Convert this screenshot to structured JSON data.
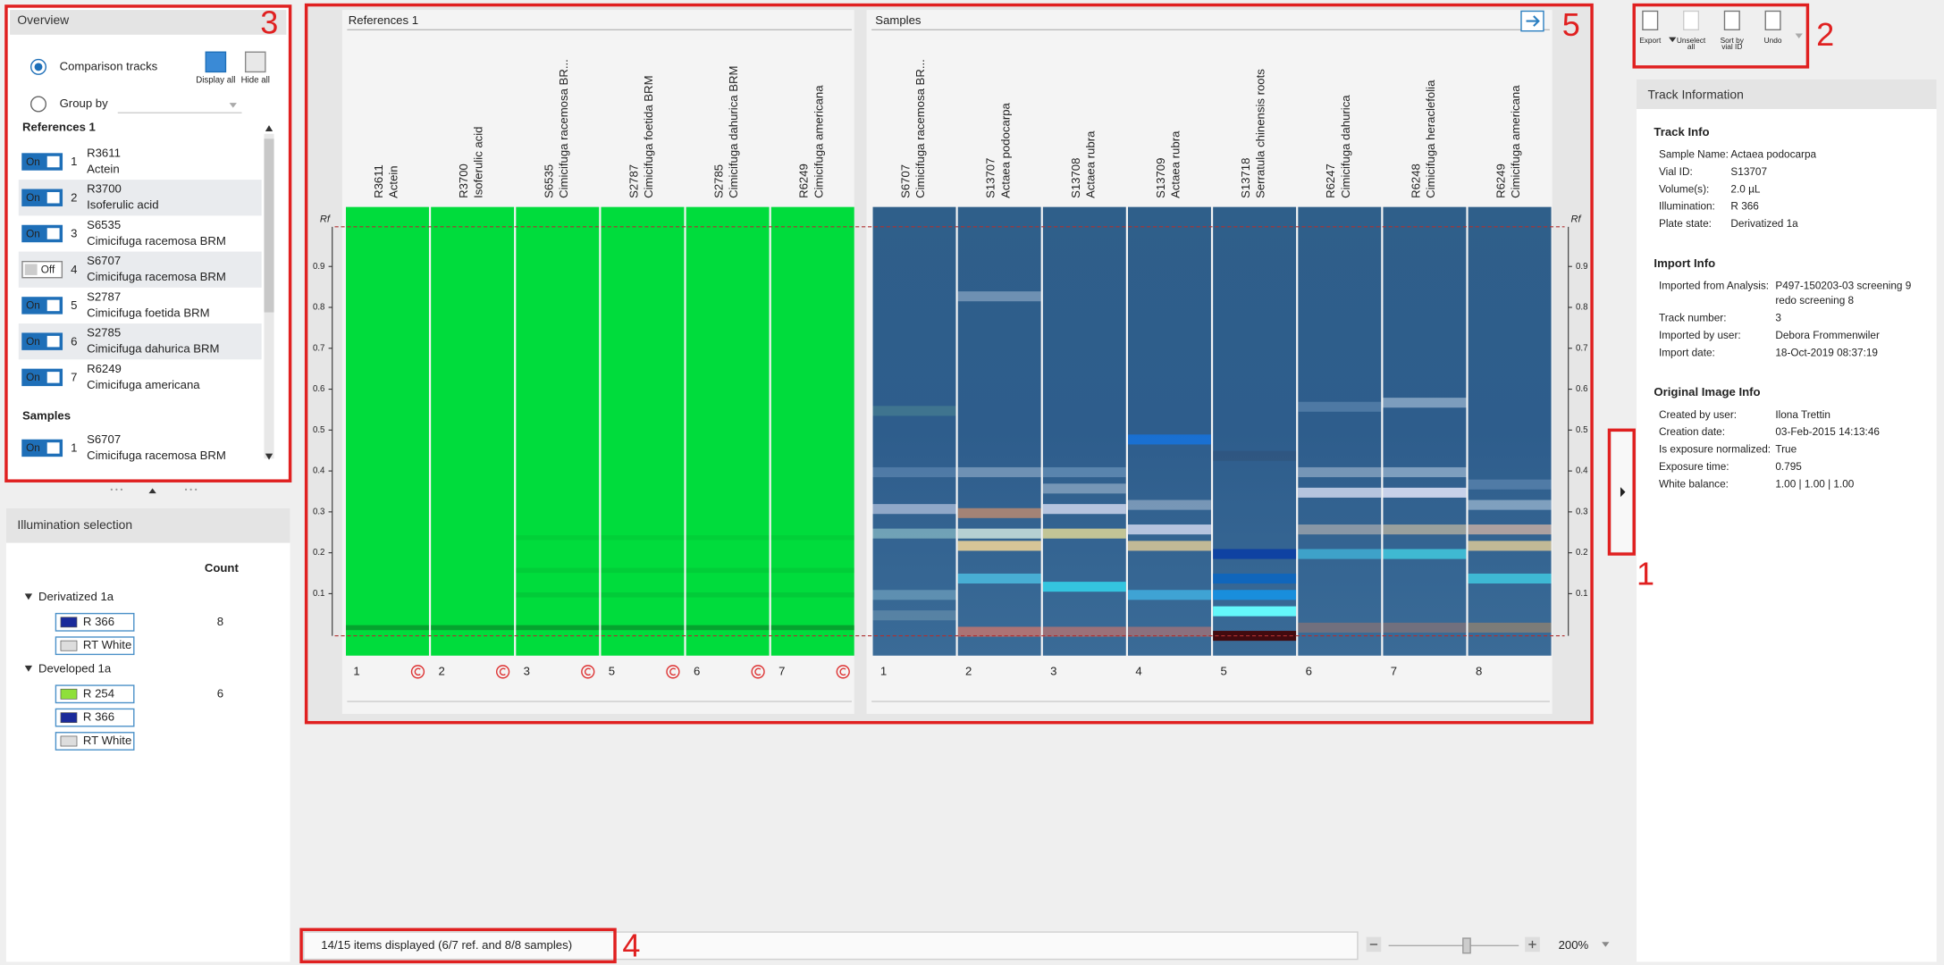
{
  "overview": {
    "title": "Overview",
    "comparison_tracks": "Comparison tracks",
    "display_all": "Display all",
    "hide_all": "Hide all",
    "group_by": "Group by",
    "references_heading": "References 1",
    "references": [
      {
        "toggle": "On",
        "enabled": true,
        "index": "1",
        "id": "R3611",
        "name": "Actein"
      },
      {
        "toggle": "On",
        "enabled": true,
        "index": "2",
        "id": "R3700",
        "name": "Isoferulic acid"
      },
      {
        "toggle": "On",
        "enabled": true,
        "index": "3",
        "id": "S6535",
        "name": "Cimicifuga racemosa BRM"
      },
      {
        "toggle": "Off",
        "enabled": false,
        "index": "4",
        "id": "S6707",
        "name": "Cimicifuga racemosa BRM"
      },
      {
        "toggle": "On",
        "enabled": true,
        "index": "5",
        "id": "S2787",
        "name": "Cimicifuga foetida BRM"
      },
      {
        "toggle": "On",
        "enabled": true,
        "index": "6",
        "id": "S2785",
        "name": "Cimicifuga dahurica BRM"
      },
      {
        "toggle": "On",
        "enabled": true,
        "index": "7",
        "id": "R6249",
        "name": "Cimicifuga americana"
      }
    ],
    "samples_heading": "Samples",
    "samples": [
      {
        "toggle": "On",
        "enabled": true,
        "index": "1",
        "id": "S6707",
        "name": "Cimicifuga racemosa BRM"
      }
    ]
  },
  "illumination": {
    "title": "Illumination selection",
    "count_header": "Count",
    "groups": [
      {
        "name": "Derivatized 1a",
        "count": "8",
        "items": [
          {
            "label": "R 366",
            "color": "#1a2a9a"
          },
          {
            "label": "RT White",
            "color": "#dddddd"
          }
        ]
      },
      {
        "name": "Developed 1a",
        "count": "6",
        "items": [
          {
            "label": "R 254",
            "color": "#8fe03a"
          },
          {
            "label": "R 366",
            "color": "#1a2a9a"
          },
          {
            "label": "RT White",
            "color": "#dddddd"
          }
        ]
      }
    ]
  },
  "viewer": {
    "references_title": "References 1",
    "samples_title": "Samples",
    "rf_label": "Rf",
    "rf_ticks": [
      "0.9",
      "0.8",
      "0.7",
      "0.6",
      "0.5",
      "0.4",
      "0.3",
      "0.2",
      "0.1"
    ],
    "reference_tracks": [
      {
        "id": "R3611",
        "name": "Actein",
        "number": "1"
      },
      {
        "id": "R3700",
        "name": "Isoferulic acid",
        "number": "2"
      },
      {
        "id": "S6535",
        "name": "Cimicifuga racemosa BR...",
        "number": "3"
      },
      {
        "id": "S2787",
        "name": "Cimicifuga foetida BRM",
        "number": "5"
      },
      {
        "id": "S2785",
        "name": "Cimicifuga dahurica BRM",
        "number": "6"
      },
      {
        "id": "R6249",
        "name": "Cimicifuga americana",
        "number": "7"
      }
    ],
    "sample_tracks": [
      {
        "id": "S6707",
        "name": "Cimicifuga racemosa BR...",
        "number": "1"
      },
      {
        "id": "S13707",
        "name": "Actaea podocarpa",
        "number": "2"
      },
      {
        "id": "S13708",
        "name": "Actaea rubra",
        "number": "3"
      },
      {
        "id": "S13709",
        "name": "Actaea rubra",
        "number": "4"
      },
      {
        "id": "S13718",
        "name": "Serratula chinensis roots",
        "number": "5"
      },
      {
        "id": "R6247",
        "name": "Cimicifuga dahurica",
        "number": "6"
      },
      {
        "id": "R6248",
        "name": "Cimicifuga heraclefolia",
        "number": "7"
      },
      {
        "id": "R6249",
        "name": "Cimicifuga americana",
        "number": "8"
      }
    ]
  },
  "toolbar": [
    {
      "label": [
        "Export"
      ],
      "enabled": true
    },
    {
      "label": [
        "Unselect",
        "all"
      ],
      "enabled": false
    },
    {
      "label": [
        "Sort by",
        "vial ID"
      ],
      "enabled": true
    },
    {
      "label": [
        "Undo"
      ],
      "enabled": true
    }
  ],
  "track_information": {
    "title": "Track Information",
    "sections": [
      {
        "heading": "Track Info",
        "rows": [
          {
            "label": "Sample Name:",
            "value": "Actaea podocarpa"
          },
          {
            "label": "Vial ID:",
            "value": "S13707"
          },
          {
            "label": "Volume(s):",
            "value": "2.0 µL"
          },
          {
            "label": "Illumination:",
            "value": "R 366"
          },
          {
            "label": "Plate state:",
            "value": "Derivatized 1a"
          }
        ]
      },
      {
        "heading": "Import Info",
        "rows": [
          {
            "label": "Imported from Analysis:",
            "value": [
              "P497-150203-03 screening 9",
              "redo screening 8"
            ]
          },
          {
            "label": "Track number:",
            "value": "3"
          },
          {
            "label": "Imported by user:",
            "value": "Debora Frommenwiler"
          },
          {
            "label": "Import date:",
            "value": "18-Oct-2019 08:37:19"
          }
        ]
      },
      {
        "heading": "Original Image Info",
        "rows": [
          {
            "label": "Created by user:",
            "value": "Ilona Trettin"
          },
          {
            "label": "Creation date:",
            "value": "03-Feb-2015 14:13:46"
          },
          {
            "label": "Is exposure normalized:",
            "value": "True"
          },
          {
            "label": "Exposure time:",
            "value": "0.795"
          },
          {
            "label": "White balance:",
            "value": "1.00 | 1.00 | 1.00"
          }
        ]
      }
    ]
  },
  "status": {
    "text": "14/15 items displayed (6/7 ref. and 8/8 samples)",
    "zoom": "200%"
  },
  "callouts": [
    "1",
    "2",
    "3",
    "4",
    "5"
  ]
}
